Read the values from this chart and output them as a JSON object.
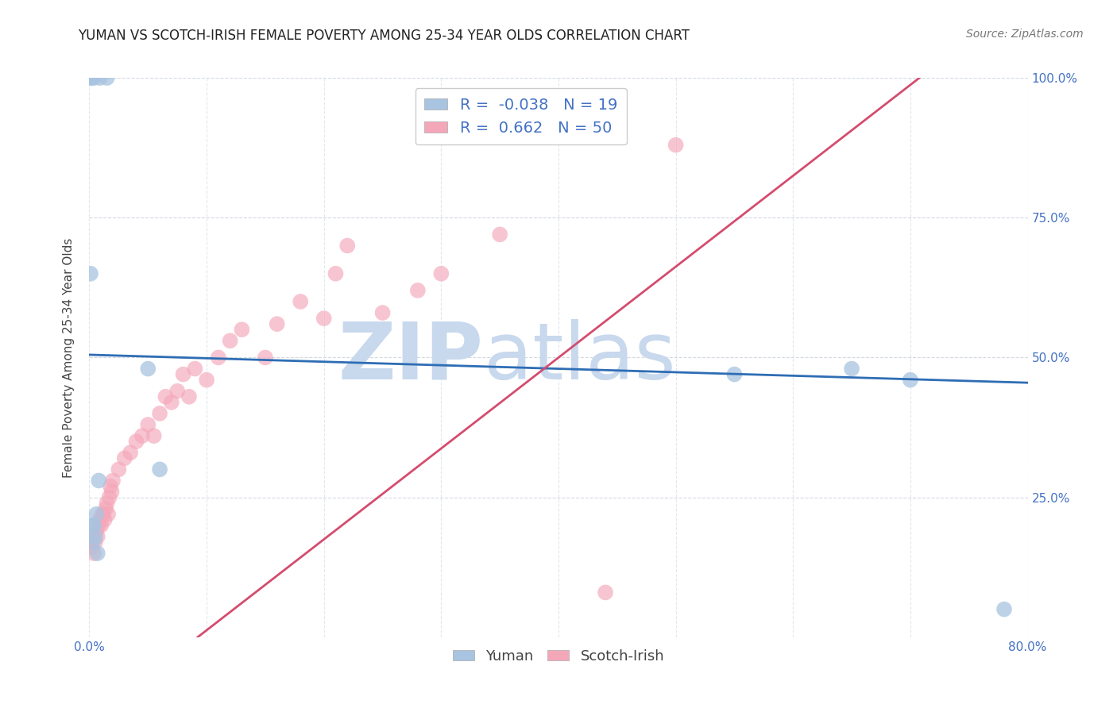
{
  "title": "YUMAN VS SCOTCH-IRISH FEMALE POVERTY AMONG 25-34 YEAR OLDS CORRELATION CHART",
  "source": "Source: ZipAtlas.com",
  "ylabel": "Female Poverty Among 25-34 Year Olds",
  "xlim": [
    0.0,
    0.8
  ],
  "ylim": [
    0.0,
    1.0
  ],
  "xticks": [
    0.0,
    0.1,
    0.2,
    0.3,
    0.4,
    0.5,
    0.6,
    0.7,
    0.8
  ],
  "xticklabels": [
    "0.0%",
    "",
    "",
    "",
    "",
    "",
    "",
    "",
    "80.0%"
  ],
  "yticks": [
    0.0,
    0.25,
    0.5,
    0.75,
    1.0
  ],
  "yticklabels_right": [
    "",
    "25.0%",
    "50.0%",
    "75.0%",
    "100.0%"
  ],
  "yuman_R": -0.038,
  "yuman_N": 19,
  "scotch_irish_R": 0.662,
  "scotch_irish_N": 50,
  "yuman_color": "#a8c4e0",
  "scotch_irish_color": "#f4a7b9",
  "yuman_line_color": "#2e6db4",
  "scotch_irish_line_color": "#d44c6e",
  "watermark_zip": "ZIP",
  "watermark_atlas": "atlas",
  "watermark_color": "#c8d8ed",
  "yuman_x": [
    0.001,
    0.002,
    0.004,
    0.009,
    0.015,
    0.001,
    0.002,
    0.003,
    0.004,
    0.005,
    0.006,
    0.007,
    0.008,
    0.05,
    0.06,
    0.55,
    0.65,
    0.7,
    0.78
  ],
  "yuman_y": [
    1.0,
    1.0,
    1.0,
    1.0,
    1.0,
    0.65,
    0.2,
    0.17,
    0.2,
    0.18,
    0.22,
    0.15,
    0.28,
    0.48,
    0.3,
    0.47,
    0.48,
    0.46,
    0.05
  ],
  "scotch_irish_x": [
    0.001,
    0.002,
    0.003,
    0.004,
    0.005,
    0.006,
    0.007,
    0.008,
    0.009,
    0.01,
    0.011,
    0.012,
    0.013,
    0.014,
    0.015,
    0.016,
    0.017,
    0.018,
    0.019,
    0.02,
    0.025,
    0.03,
    0.035,
    0.04,
    0.045,
    0.05,
    0.055,
    0.06,
    0.065,
    0.07,
    0.075,
    0.08,
    0.085,
    0.09,
    0.1,
    0.11,
    0.12,
    0.13,
    0.15,
    0.16,
    0.18,
    0.2,
    0.21,
    0.22,
    0.25,
    0.28,
    0.3,
    0.35,
    0.44,
    0.5
  ],
  "scotch_irish_y": [
    0.17,
    0.16,
    0.18,
    0.15,
    0.17,
    0.19,
    0.18,
    0.2,
    0.21,
    0.2,
    0.22,
    0.22,
    0.21,
    0.23,
    0.24,
    0.22,
    0.25,
    0.27,
    0.26,
    0.28,
    0.3,
    0.32,
    0.33,
    0.35,
    0.36,
    0.38,
    0.36,
    0.4,
    0.43,
    0.42,
    0.44,
    0.47,
    0.43,
    0.48,
    0.46,
    0.5,
    0.53,
    0.55,
    0.5,
    0.56,
    0.6,
    0.57,
    0.65,
    0.7,
    0.58,
    0.62,
    0.65,
    0.72,
    0.08,
    0.88
  ]
}
